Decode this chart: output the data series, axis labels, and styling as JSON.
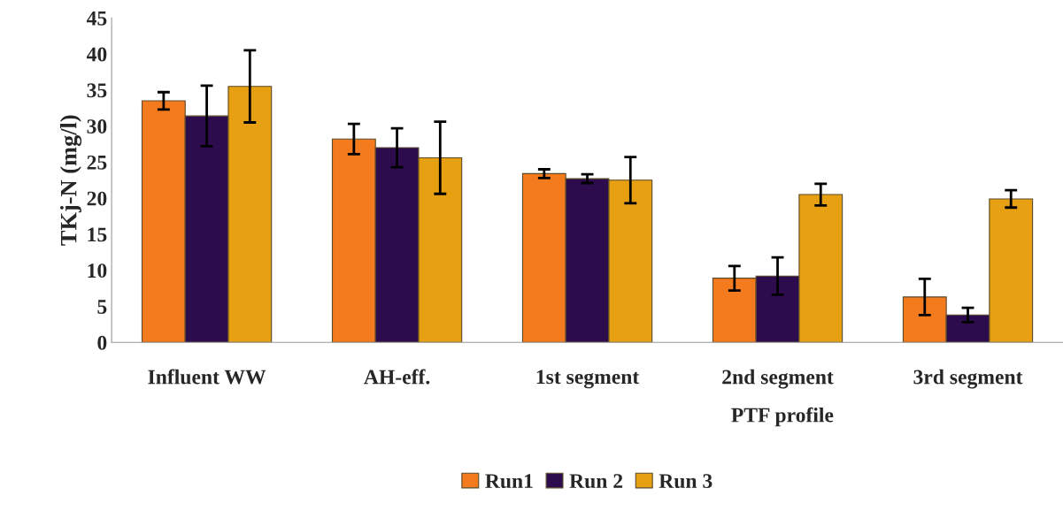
{
  "chart_data": {
    "type": "bar",
    "ylabel": "TKj-N (mg/l)",
    "xlabel": "PTF profile",
    "categories": [
      "Influent WW",
      "AH-eff.",
      "1st segment",
      "2nd segment",
      "3rd segment"
    ],
    "series": [
      {
        "name": "Run1",
        "color": "#f47a1e",
        "values": [
          33.5,
          28.2,
          23.4,
          8.9,
          6.3
        ],
        "errors": [
          1.2,
          2.1,
          0.6,
          1.7,
          2.5
        ]
      },
      {
        "name": "Run 2",
        "color": "#2c0c4c",
        "values": [
          31.4,
          27.0,
          22.7,
          9.2,
          3.8
        ],
        "errors": [
          4.2,
          2.7,
          0.6,
          2.6,
          1.0
        ]
      },
      {
        "name": "Run 3",
        "color": "#e6a012",
        "values": [
          35.5,
          25.6,
          22.5,
          20.5,
          19.9
        ],
        "errors": [
          5.0,
          5.0,
          3.2,
          1.5,
          1.2
        ]
      }
    ],
    "ylim": [
      0,
      45
    ],
    "yticks": [
      0,
      5,
      10,
      15,
      20,
      25,
      30,
      35,
      40,
      45
    ],
    "grid": false,
    "legend": "bottom"
  }
}
